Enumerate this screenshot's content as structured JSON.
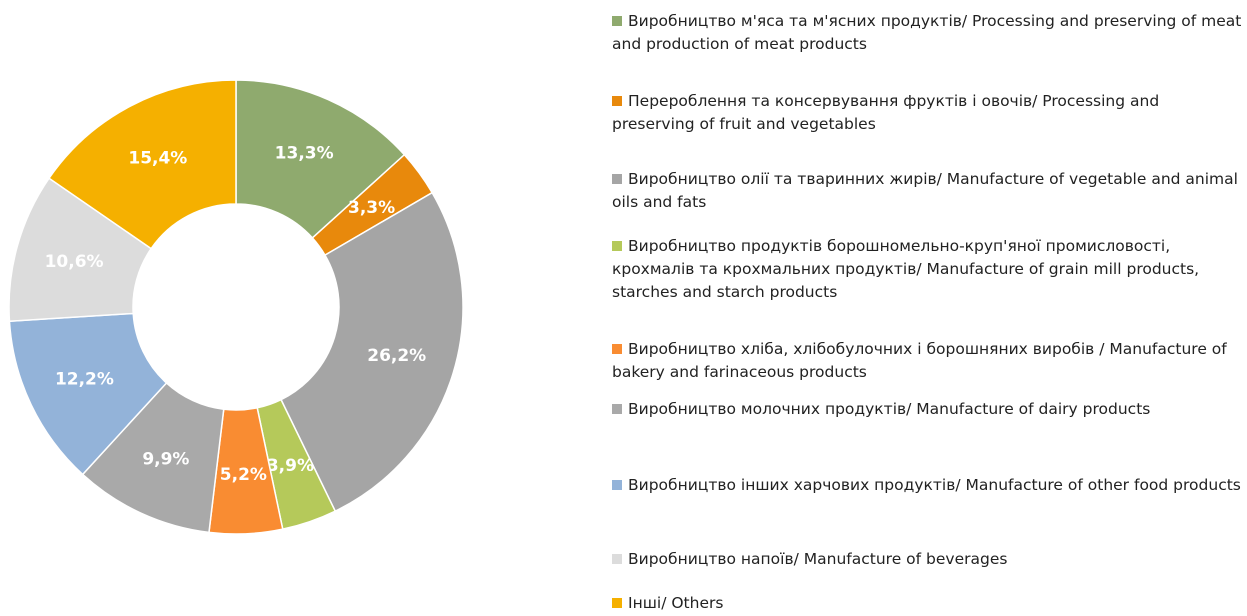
{
  "chart_data": {
    "type": "donut",
    "categories": [
      "Виробництво м'яса та м'ясних продуктів/ Processing and preserving of meat and production of meat products",
      "Перероблення та консервування фруктів і овочів/ Processing and preserving of fruit and vegetables",
      "Виробництво олії та тваринних жирів/ Manufacture of vegetable and animal oils and fats",
      "Виробництво продуктів борошномельно-круп'яної промисловості, крохмалів та крохмальних продуктів/ Manufacture of grain mill products, starches and starch products",
      "Виробництво хліба, хлібобулочних і борошняних виробів / Manufacture of bakery and farinaceous products",
      "Виробництво молочних продуктів/ Manufacture of dairy products",
      "Виробництво інших харчових продуктів/ Manufacture of other food products",
      "Виробництво напоїв/ Manufacture of beverages",
      "Інші/ Others"
    ],
    "values": [
      13.3,
      3.3,
      26.2,
      3.9,
      5.2,
      9.9,
      12.2,
      10.6,
      15.4
    ],
    "value_labels": [
      "13,3%",
      "3,3%",
      "26,2%",
      "3,9%",
      "5,2%",
      "9,9%",
      "12,2%",
      "10,6%",
      "15,4%"
    ],
    "colors": [
      "#8faa6e",
      "#e8890c",
      "#a5a5a5",
      "#b5c95a",
      "#f98c32",
      "#a9a9a9",
      "#93b3d9",
      "#dcdcdc",
      "#f5b000"
    ]
  }
}
